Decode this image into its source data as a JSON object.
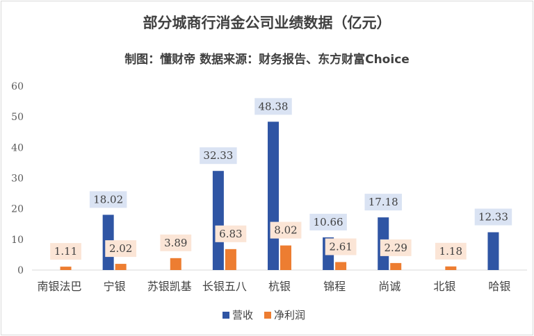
{
  "chart_data": {
    "type": "bar",
    "title": "部分城商行消金公司业绩数据（亿元）",
    "subtitle": "制图：懂财帝  数据来源：财务报告、东方财富Choice",
    "categories": [
      "南银法巴",
      "宁银",
      "苏银凯基",
      "长银五八",
      "杭银",
      "锦程",
      "尚诚",
      "北银",
      "哈银"
    ],
    "series": [
      {
        "name": "营收",
        "color": "#2f55a4",
        "label_bg": "#dae3f3",
        "values": [
          null,
          18.02,
          null,
          32.33,
          48.38,
          10.66,
          17.18,
          null,
          12.33
        ],
        "labels": [
          "",
          "18.02",
          "",
          "32.33",
          "48.38",
          "10.66",
          "17.18",
          "",
          "12.33"
        ]
      },
      {
        "name": "净利润",
        "color": "#ed7d31",
        "label_bg": "#fbe5d6",
        "values": [
          1.11,
          2.02,
          3.89,
          6.83,
          8.02,
          2.61,
          2.29,
          1.18,
          null
        ],
        "labels": [
          "1.11",
          "2.02",
          "3.89",
          "6.83",
          "8.02",
          "2.61",
          "2.29",
          "1.18",
          ""
        ]
      }
    ],
    "yticks": [
      "0",
      "10",
      "20",
      "30",
      "40",
      "50",
      "60"
    ],
    "ylim": [
      0,
      60
    ],
    "grid": false,
    "legend": "bottom-center"
  }
}
